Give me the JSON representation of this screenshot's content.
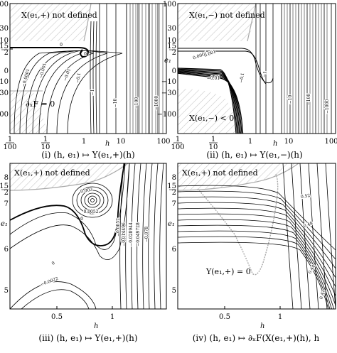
{
  "chart_data": [
    {
      "type": "contour",
      "caption": "(i)  (h, e₁) ↦ Y(e₁,+)(h)",
      "xlabel": "h",
      "ylabel": "",
      "x_ticks": [
        "1/100",
        "1/10",
        "1",
        "10",
        "100"
      ],
      "y_ticks": [
        "100",
        "30",
        "10",
        "15/2",
        "0",
        "−10",
        "−30",
        "−100"
      ],
      "annotations": [
        "X(e₁,+) not defined",
        "∂ₓF = 0"
      ],
      "contour_labels": [
        "0",
        "0",
        "−0.0001",
        "−0.001",
        "−0.01",
        "−0.1",
        "−1",
        "−10",
        "−100",
        "−1000"
      ]
    },
    {
      "type": "contour",
      "caption": "(ii)  (h, e₁) ↦ Y(e₁,−)(h)",
      "xlabel": "h",
      "ylabel": "e₁",
      "x_ticks": [
        "1/100",
        "1/10",
        "1",
        "10",
        "100"
      ],
      "y_ticks": [
        "100",
        "30",
        "10",
        "15/2",
        "0",
        "−10",
        "−30",
        "−100"
      ],
      "annotations": [
        "X(e₁,−) not defined",
        "X(e₁,−) < 0"
      ],
      "contour_labels": [
        "0.0001",
        "0.001",
        "−0.01",
        "−0.1",
        "−1",
        "−10",
        "−100",
        "−1000"
      ]
    },
    {
      "type": "contour",
      "caption": "(iii)  (h, e₁) ↦ Y(e₁,+)(h)",
      "xlabel": "h",
      "ylabel": "e₁",
      "x_ticks": [
        "0.5",
        "1"
      ],
      "y_ticks": [
        "8",
        "15/2",
        "7",
        "6",
        "5"
      ],
      "annotations": [
        "X(e₁,+) not defined"
      ],
      "contour_labels": [
        "0.003",
        "0.0052",
        "0",
        "−0.0052",
        "−0.014496",
        "−0.028944",
        "−0.049728",
        "−0.078",
        "0",
        "−0.0022"
      ]
    },
    {
      "type": "contour",
      "caption": "(iv)  (h, e₁) ↦ ∂ₓF(X(e₁,+)(h), h",
      "xlabel": "h",
      "ylabel": "e₁",
      "x_ticks": [
        "0.5",
        "1"
      ],
      "y_ticks": [
        "8",
        "15/2",
        "7",
        "6",
        "5"
      ],
      "annotations": [
        "X(e₁,+) not defined",
        "Y(e₁,+) = 0"
      ],
      "contour_labels": [
        "0.52",
        "0.48",
        "0.44",
        "0.41"
      ]
    }
  ]
}
